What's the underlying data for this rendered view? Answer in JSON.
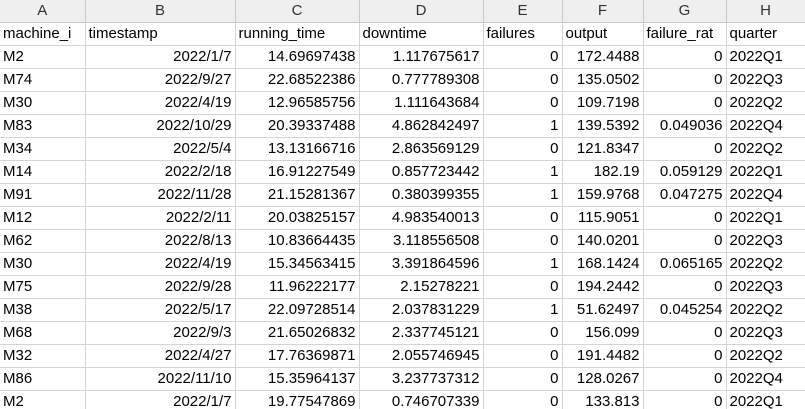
{
  "columns": [
    "A",
    "B",
    "C",
    "D",
    "E",
    "F",
    "G",
    "H"
  ],
  "header": [
    "machine_i",
    "timestamp",
    "running_time",
    "downtime",
    "failures",
    "output",
    "failure_rat",
    "quarter"
  ],
  "rows": [
    [
      "M2",
      "2022/1/7",
      "14.69697438",
      "1.117675617",
      "0",
      "172.4488",
      "0",
      "2022Q1"
    ],
    [
      "M74",
      "2022/9/27",
      "22.68522386",
      "0.777789308",
      "0",
      "135.0502",
      "0",
      "2022Q3"
    ],
    [
      "M30",
      "2022/4/19",
      "12.96585756",
      "1.111643684",
      "0",
      "109.7198",
      "0",
      "2022Q2"
    ],
    [
      "M83",
      "2022/10/29",
      "20.39337488",
      "4.862842497",
      "1",
      "139.5392",
      "0.049036",
      "2022Q4"
    ],
    [
      "M34",
      "2022/5/4",
      "13.13166716",
      "2.863569129",
      "0",
      "121.8347",
      "0",
      "2022Q2"
    ],
    [
      "M14",
      "2022/2/18",
      "16.91227549",
      "0.857723442",
      "1",
      "182.19",
      "0.059129",
      "2022Q1"
    ],
    [
      "M91",
      "2022/11/28",
      "21.15281367",
      "0.380399355",
      "1",
      "159.9768",
      "0.047275",
      "2022Q4"
    ],
    [
      "M12",
      "2022/2/11",
      "20.03825157",
      "4.983540013",
      "0",
      "115.9051",
      "0",
      "2022Q1"
    ],
    [
      "M62",
      "2022/8/13",
      "10.83664435",
      "3.118556508",
      "0",
      "140.0201",
      "0",
      "2022Q3"
    ],
    [
      "M30",
      "2022/4/19",
      "15.34563415",
      "3.391864596",
      "1",
      "168.1424",
      "0.065165",
      "2022Q2"
    ],
    [
      "M75",
      "2022/9/28",
      "11.96222177",
      "2.15278221",
      "0",
      "194.2442",
      "0",
      "2022Q3"
    ],
    [
      "M38",
      "2022/5/17",
      "22.09728514",
      "2.037831229",
      "1",
      "51.62497",
      "0.045254",
      "2022Q2"
    ],
    [
      "M68",
      "2022/9/3",
      "21.65026832",
      "2.337745121",
      "0",
      "156.099",
      "0",
      "2022Q3"
    ],
    [
      "M32",
      "2022/4/27",
      "17.76369871",
      "2.055746945",
      "0",
      "191.4482",
      "0",
      "2022Q2"
    ],
    [
      "M86",
      "2022/11/10",
      "15.35964137",
      "3.237737312",
      "0",
      "128.0267",
      "0",
      "2022Q4"
    ],
    [
      "M2",
      "2022/1/7",
      "19.77547869",
      "0.746707339",
      "0",
      "133.813",
      "0",
      "2022Q1"
    ]
  ]
}
